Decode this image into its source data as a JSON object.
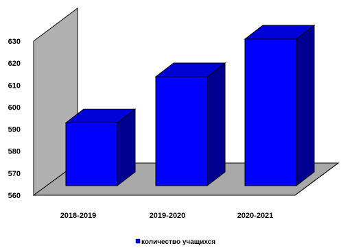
{
  "chart_data": {
    "type": "bar",
    "categories": [
      "2018-2019",
      "2019-2020",
      "2020-2021"
    ],
    "series": [
      {
        "name": "количество учащихся",
        "values": [
          590,
          612,
          630
        ],
        "color": "#0000ff"
      }
    ],
    "y_ticks": [
      "560",
      "570",
      "580",
      "590",
      "600",
      "610",
      "620",
      "630"
    ],
    "ylim": [
      560,
      630
    ],
    "legend": "bottom-center",
    "style": "3d-column",
    "colors": {
      "bar_front": "#0000ff",
      "bar_top": "#0000d8",
      "bar_side": "#000090",
      "wall": "#b0b0b0",
      "floor": "#a8a8a8"
    }
  }
}
